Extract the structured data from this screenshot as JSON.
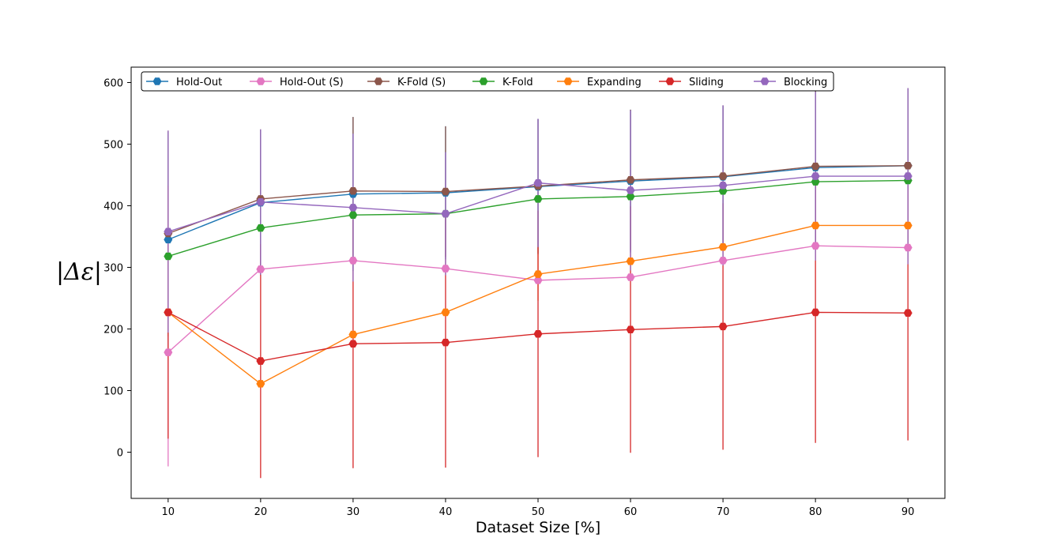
{
  "chart_data": {
    "type": "line",
    "title": "",
    "xlabel": "Dataset Size [%]",
    "ylabel": "|Δε|",
    "x": [
      10,
      20,
      30,
      40,
      50,
      60,
      70,
      80,
      90
    ],
    "xlim": [
      6,
      94
    ],
    "ylim": [
      -75,
      625
    ],
    "xticks": [
      10,
      20,
      30,
      40,
      50,
      60,
      70,
      80,
      90
    ],
    "yticks": [
      0,
      100,
      200,
      300,
      400,
      500,
      600
    ],
    "legend_position": "top-left",
    "grid": false,
    "series": [
      {
        "name": "Hold-Out",
        "color": "#1f77b4",
        "values": [
          345,
          405,
          419,
          421,
          431,
          440,
          447,
          462,
          465
        ],
        "err": [
          175,
          118,
          125,
          108,
          110,
          116,
          115,
          125,
          126
        ]
      },
      {
        "name": "Hold-Out (S)",
        "color": "#e377c2",
        "values": [
          162,
          297,
          311,
          298,
          279,
          284,
          311,
          335,
          332
        ],
        "err": [
          185,
          0,
          0,
          0,
          0,
          0,
          0,
          0,
          0
        ]
      },
      {
        "name": "K-Fold (S)",
        "color": "#8c564b",
        "values": [
          355,
          411,
          424,
          423,
          432,
          442,
          448,
          464,
          465
        ],
        "err": [
          167,
          113,
          120,
          106,
          109,
          114,
          115,
          123,
          126
        ]
      },
      {
        "name": "K-Fold",
        "color": "#2ca02c",
        "values": [
          318,
          364,
          385,
          387,
          411,
          415,
          424,
          439,
          441
        ],
        "err": [
          0,
          0,
          0,
          0,
          0,
          0,
          0,
          0,
          0
        ]
      },
      {
        "name": "Expanding",
        "color": "#ff7f0e",
        "values": [
          227,
          111,
          191,
          227,
          289,
          310,
          333,
          368,
          368
        ],
        "err": [
          0,
          0,
          0,
          0,
          43,
          0,
          0,
          0,
          0
        ]
      },
      {
        "name": "Sliding",
        "color": "#d62728",
        "values": [
          227,
          148,
          176,
          178,
          192,
          199,
          204,
          227,
          226
        ],
        "err": [
          205,
          190,
          202,
          203,
          200,
          200,
          200,
          212,
          207
        ]
      },
      {
        "name": "Blocking",
        "color": "#9467bd",
        "values": [
          358,
          406,
          397,
          387,
          437,
          425,
          433,
          448,
          448
        ],
        "err": [
          164,
          118,
          120,
          100,
          104,
          130,
          130,
          137,
          143
        ]
      }
    ]
  }
}
